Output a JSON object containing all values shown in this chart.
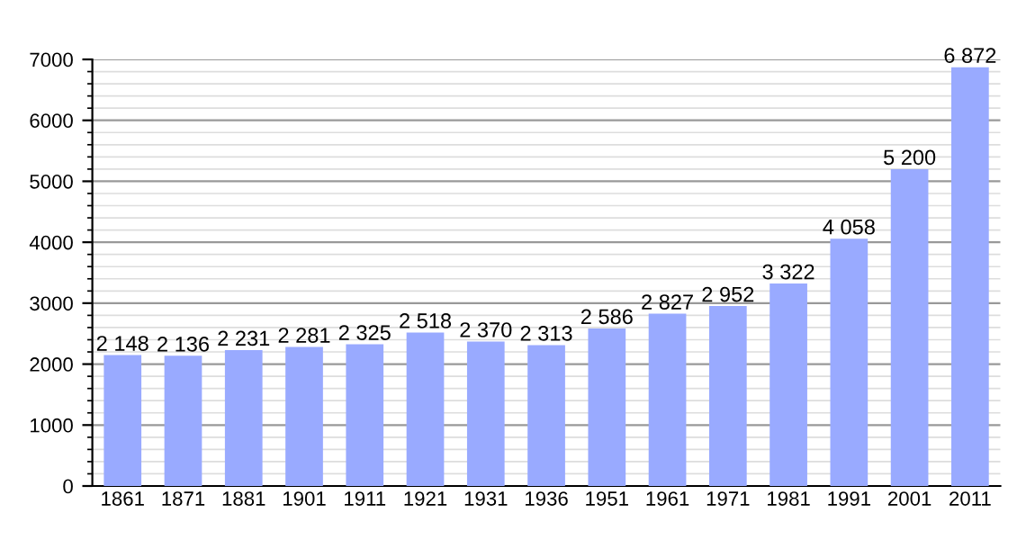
{
  "chart_data": {
    "type": "bar",
    "categories": [
      "1861",
      "1871",
      "1881",
      "1901",
      "1911",
      "1921",
      "1931",
      "1936",
      "1951",
      "1961",
      "1971",
      "1981",
      "1991",
      "2001",
      "2011"
    ],
    "values": [
      2148,
      2136,
      2231,
      2281,
      2325,
      2518,
      2370,
      2313,
      2586,
      2827,
      2952,
      3322,
      4058,
      5200,
      6872
    ],
    "value_labels": [
      "2 148",
      "2 136",
      "2 231",
      "2 281",
      "2 325",
      "2 518",
      "2 370",
      "2 313",
      "2 586",
      "2 827",
      "2 952",
      "3 322",
      "4 058",
      "5 200",
      "6 872"
    ],
    "color": "#99aaff",
    "ylim": [
      0,
      7000
    ],
    "yticks": [
      0,
      1000,
      2000,
      3000,
      4000,
      5000,
      6000,
      7000
    ],
    "grid": "y",
    "legend": false
  }
}
